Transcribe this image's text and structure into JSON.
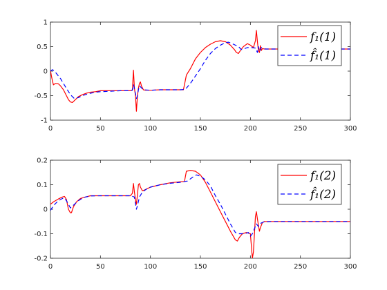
{
  "chart_data": [
    {
      "type": "line",
      "xlim": [
        0,
        300
      ],
      "ylim": [
        -1,
        1
      ],
      "xticks": [
        0,
        50,
        100,
        150,
        200,
        250,
        300
      ],
      "yticks": [
        -1,
        -0.5,
        0,
        0.5,
        1
      ],
      "grid": false,
      "legend_position": "top-right",
      "series": [
        {
          "name": "f₁(1)",
          "color": "#ff0000",
          "dash": "solid",
          "points": [
            [
              0,
              0.02
            ],
            [
              1,
              -0.1
            ],
            [
              2,
              -0.2
            ],
            [
              3,
              -0.28
            ],
            [
              5,
              -0.25
            ],
            [
              8,
              -0.26
            ],
            [
              10,
              -0.3
            ],
            [
              13,
              -0.38
            ],
            [
              16,
              -0.5
            ],
            [
              18,
              -0.58
            ],
            [
              20,
              -0.63
            ],
            [
              22,
              -0.64
            ],
            [
              25,
              -0.58
            ],
            [
              28,
              -0.52
            ],
            [
              32,
              -0.48
            ],
            [
              36,
              -0.45
            ],
            [
              40,
              -0.43
            ],
            [
              45,
              -0.42
            ],
            [
              50,
              -0.4
            ],
            [
              60,
              -0.4
            ],
            [
              70,
              -0.4
            ],
            [
              80,
              -0.4
            ],
            [
              82,
              -0.38
            ],
            [
              83,
              0.02
            ],
            [
              84,
              -0.35
            ],
            [
              85,
              -0.5
            ],
            [
              86,
              -0.82
            ],
            [
              87,
              -0.5
            ],
            [
              88,
              -0.35
            ],
            [
              89,
              -0.25
            ],
            [
              90,
              -0.22
            ],
            [
              91,
              -0.3
            ],
            [
              93,
              -0.38
            ],
            [
              95,
              -0.39
            ],
            [
              100,
              -0.39
            ],
            [
              110,
              -0.38
            ],
            [
              120,
              -0.38
            ],
            [
              130,
              -0.38
            ],
            [
              133,
              -0.38
            ],
            [
              134,
              -0.28
            ],
            [
              136,
              -0.08
            ],
            [
              140,
              0.05
            ],
            [
              145,
              0.25
            ],
            [
              150,
              0.38
            ],
            [
              155,
              0.48
            ],
            [
              160,
              0.55
            ],
            [
              165,
              0.6
            ],
            [
              170,
              0.62
            ],
            [
              175,
              0.6
            ],
            [
              180,
              0.53
            ],
            [
              184,
              0.44
            ],
            [
              186,
              0.38
            ],
            [
              188,
              0.36
            ],
            [
              190,
              0.42
            ],
            [
              193,
              0.5
            ],
            [
              197,
              0.56
            ],
            [
              200,
              0.53
            ],
            [
              203,
              0.48
            ],
            [
              205,
              0.62
            ],
            [
              206,
              0.83
            ],
            [
              207,
              0.6
            ],
            [
              208,
              0.42
            ],
            [
              209,
              0.38
            ],
            [
              210,
              0.52
            ],
            [
              211,
              0.42
            ],
            [
              212,
              0.46
            ],
            [
              214,
              0.45
            ],
            [
              220,
              0.45
            ],
            [
              250,
              0.45
            ],
            [
              300,
              0.45
            ]
          ]
        },
        {
          "name": "f̂₁(1)",
          "color": "#0000ff",
          "dash": "dashed",
          "points": [
            [
              0,
              0
            ],
            [
              2,
              0.03
            ],
            [
              4,
              0.0
            ],
            [
              6,
              -0.05
            ],
            [
              10,
              -0.15
            ],
            [
              15,
              -0.32
            ],
            [
              20,
              -0.48
            ],
            [
              24,
              -0.56
            ],
            [
              28,
              -0.54
            ],
            [
              32,
              -0.5
            ],
            [
              38,
              -0.46
            ],
            [
              45,
              -0.43
            ],
            [
              50,
              -0.42
            ],
            [
              60,
              -0.41
            ],
            [
              70,
              -0.4
            ],
            [
              80,
              -0.4
            ],
            [
              82,
              -0.39
            ],
            [
              83,
              -0.28
            ],
            [
              84,
              -0.35
            ],
            [
              86,
              -0.56
            ],
            [
              87,
              -0.5
            ],
            [
              88,
              -0.38
            ],
            [
              89,
              -0.3
            ],
            [
              90,
              -0.32
            ],
            [
              93,
              -0.38
            ],
            [
              100,
              -0.39
            ],
            [
              110,
              -0.38
            ],
            [
              120,
              -0.38
            ],
            [
              130,
              -0.38
            ],
            [
              135,
              -0.37
            ],
            [
              140,
              -0.25
            ],
            [
              145,
              -0.1
            ],
            [
              150,
              0.05
            ],
            [
              155,
              0.22
            ],
            [
              160,
              0.36
            ],
            [
              165,
              0.46
            ],
            [
              170,
              0.53
            ],
            [
              175,
              0.58
            ],
            [
              178,
              0.59
            ],
            [
              183,
              0.55
            ],
            [
              188,
              0.5
            ],
            [
              191,
              0.44
            ],
            [
              193,
              0.45
            ],
            [
              197,
              0.48
            ],
            [
              201,
              0.48
            ],
            [
              205,
              0.47
            ],
            [
              207,
              0.38
            ],
            [
              208,
              0.5
            ],
            [
              209,
              0.4
            ],
            [
              211,
              0.48
            ],
            [
              215,
              0.45
            ],
            [
              220,
              0.45
            ],
            [
              250,
              0.45
            ],
            [
              300,
              0.45
            ]
          ]
        }
      ]
    },
    {
      "type": "line",
      "xlim": [
        0,
        300
      ],
      "ylim": [
        -0.2,
        0.2
      ],
      "xticks": [
        0,
        50,
        100,
        150,
        200,
        250,
        300
      ],
      "yticks": [
        -0.2,
        -0.1,
        0,
        0.1,
        0.2
      ],
      "grid": false,
      "legend_position": "top-right",
      "series": [
        {
          "name": "f₁(2)",
          "color": "#ff0000",
          "dash": "solid",
          "points": [
            [
              0,
              0.02
            ],
            [
              3,
              0.03
            ],
            [
              8,
              0.042
            ],
            [
              12,
              0.05
            ],
            [
              14,
              0.052
            ],
            [
              16,
              0.04
            ],
            [
              18,
              0.0
            ],
            [
              20,
              -0.015
            ],
            [
              21,
              -0.014
            ],
            [
              23,
              0.01
            ],
            [
              26,
              0.03
            ],
            [
              30,
              0.044
            ],
            [
              35,
              0.05
            ],
            [
              40,
              0.055
            ],
            [
              50,
              0.055
            ],
            [
              60,
              0.055
            ],
            [
              70,
              0.055
            ],
            [
              80,
              0.055
            ],
            [
              82,
              0.065
            ],
            [
              83,
              0.105
            ],
            [
              84,
              0.07
            ],
            [
              85,
              0.04
            ],
            [
              86,
              0.02
            ],
            [
              87,
              0.06
            ],
            [
              88,
              0.1
            ],
            [
              89,
              0.105
            ],
            [
              90,
              0.09
            ],
            [
              92,
              0.075
            ],
            [
              95,
              0.08
            ],
            [
              100,
              0.09
            ],
            [
              110,
              0.1
            ],
            [
              120,
              0.108
            ],
            [
              130,
              0.112
            ],
            [
              134,
              0.113
            ],
            [
              136,
              0.155
            ],
            [
              140,
              0.158
            ],
            [
              145,
              0.155
            ],
            [
              150,
              0.14
            ],
            [
              155,
              0.11
            ],
            [
              160,
              0.07
            ],
            [
              165,
              0.03
            ],
            [
              170,
              -0.01
            ],
            [
              175,
              -0.05
            ],
            [
              180,
              -0.09
            ],
            [
              185,
              -0.125
            ],
            [
              187,
              -0.13
            ],
            [
              189,
              -0.115
            ],
            [
              192,
              -0.1
            ],
            [
              196,
              -0.095
            ],
            [
              200,
              -0.1
            ],
            [
              202,
              -0.2
            ],
            [
              203,
              -0.175
            ],
            [
              205,
              -0.03
            ],
            [
              206,
              -0.01
            ],
            [
              207,
              -0.04
            ],
            [
              209,
              -0.09
            ],
            [
              210,
              -0.075
            ],
            [
              212,
              -0.055
            ],
            [
              214,
              -0.05
            ],
            [
              220,
              -0.05
            ],
            [
              250,
              -0.05
            ],
            [
              300,
              -0.05
            ]
          ]
        },
        {
          "name": "f̂₁(2)",
          "color": "#0000ff",
          "dash": "dashed",
          "points": [
            [
              0,
              -0.005
            ],
            [
              3,
              0.015
            ],
            [
              8,
              0.035
            ],
            [
              12,
              0.044
            ],
            [
              14,
              0.045
            ],
            [
              16,
              0.035
            ],
            [
              18,
              0.02
            ],
            [
              20,
              0.005
            ],
            [
              24,
              0.02
            ],
            [
              28,
              0.035
            ],
            [
              33,
              0.048
            ],
            [
              40,
              0.054
            ],
            [
              50,
              0.055
            ],
            [
              60,
              0.055
            ],
            [
              70,
              0.055
            ],
            [
              80,
              0.055
            ],
            [
              84,
              0.05
            ],
            [
              86,
              0.0
            ],
            [
              87,
              0.015
            ],
            [
              89,
              0.05
            ],
            [
              92,
              0.07
            ],
            [
              96,
              0.082
            ],
            [
              100,
              0.09
            ],
            [
              110,
              0.1
            ],
            [
              120,
              0.106
            ],
            [
              130,
              0.11
            ],
            [
              137,
              0.115
            ],
            [
              142,
              0.13
            ],
            [
              146,
              0.14
            ],
            [
              150,
              0.135
            ],
            [
              155,
              0.12
            ],
            [
              160,
              0.095
            ],
            [
              165,
              0.055
            ],
            [
              170,
              0.02
            ],
            [
              175,
              -0.02
            ],
            [
              180,
              -0.06
            ],
            [
              185,
              -0.095
            ],
            [
              188,
              -0.1
            ],
            [
              194,
              -0.1
            ],
            [
              198,
              -0.095
            ],
            [
              200,
              -0.11
            ],
            [
              202,
              -0.1
            ],
            [
              204,
              -0.08
            ],
            [
              206,
              -0.06
            ],
            [
              208,
              -0.07
            ],
            [
              210,
              -0.058
            ],
            [
              213,
              -0.052
            ],
            [
              220,
              -0.05
            ],
            [
              250,
              -0.05
            ],
            [
              300,
              -0.05
            ]
          ]
        }
      ]
    }
  ]
}
